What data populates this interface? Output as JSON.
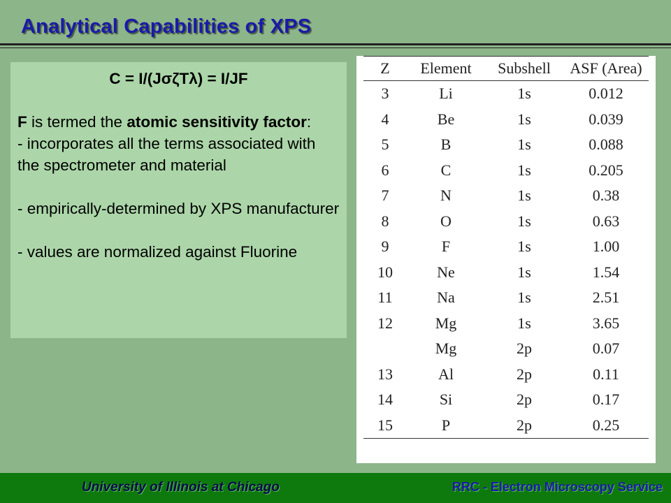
{
  "slide": {
    "title": "Analytical Capabilities of XPS"
  },
  "textbox": {
    "formula": "C = I/(JσζTλ) = I/JF",
    "f_letter": "F",
    "f_text1": " is termed the ",
    "f_bold": "atomic sensitivity factor",
    "f_text2": ":",
    "bullet1": "- incorporates all the terms associated with the spectrometer and material",
    "bullet2": "- empirically-determined by XPS manufacturer",
    "bullet3": "- values are normalized against Fluorine"
  },
  "table": {
    "headers": [
      "Z",
      "Element",
      "Subshell",
      "ASF (Area)"
    ],
    "rows": [
      [
        "3",
        "Li",
        "1s",
        "0.012"
      ],
      [
        "4",
        "Be",
        "1s",
        "0.039"
      ],
      [
        "5",
        "B",
        "1s",
        "0.088"
      ],
      [
        "6",
        "C",
        "1s",
        "0.205"
      ],
      [
        "7",
        "N",
        "1s",
        "0.38"
      ],
      [
        "8",
        "O",
        "1s",
        "0.63"
      ],
      [
        "9",
        "F",
        "1s",
        "1.00"
      ],
      [
        "10",
        "Ne",
        "1s",
        "1.54"
      ],
      [
        "11",
        "Na",
        "1s",
        "2.51"
      ],
      [
        "12",
        "Mg",
        "1s",
        "3.65"
      ],
      [
        "",
        "Mg",
        "2p",
        "0.07"
      ],
      [
        "13",
        "Al",
        "2p",
        "0.11"
      ],
      [
        "14",
        "Si",
        "2p",
        "0.17"
      ],
      [
        "15",
        "P",
        "2p",
        "0.25"
      ]
    ]
  },
  "footer": {
    "left": "University of Illinois at Chicago",
    "right": "RRC - Electron Microscopy Service"
  }
}
